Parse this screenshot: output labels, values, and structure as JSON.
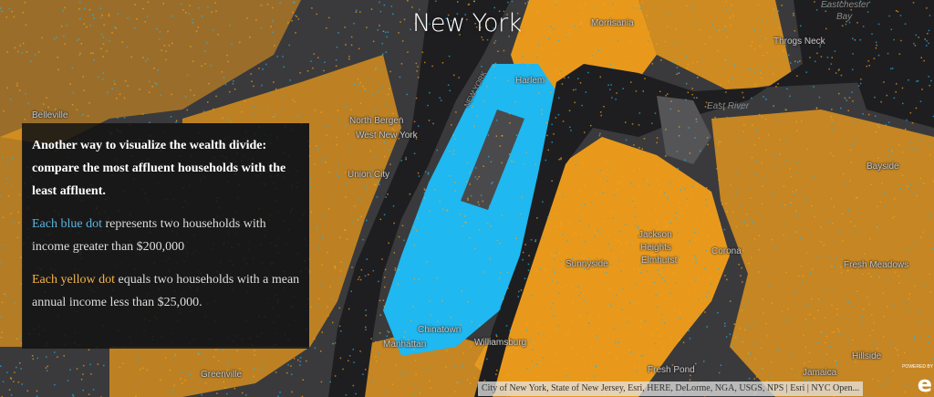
{
  "map": {
    "title": "New York",
    "colors": {
      "affluent_dot": "#1fb8f0",
      "low_income_dot": "#f9a31a",
      "land": "#3a3a3c",
      "water": "#1e1e20",
      "park": "#555557"
    },
    "labels": [
      {
        "text": "Belleville",
        "type": "place"
      },
      {
        "text": "North Bergen",
        "type": "place"
      },
      {
        "text": "West New York",
        "type": "place"
      },
      {
        "text": "Union City",
        "type": "place"
      },
      {
        "text": "Harlem",
        "type": "place"
      },
      {
        "text": "Morrisania",
        "type": "place"
      },
      {
        "text": "Eastchester",
        "type": "water"
      },
      {
        "text": "Bay",
        "type": "water"
      },
      {
        "text": "Throgs Neck",
        "type": "place"
      },
      {
        "text": "East River",
        "type": "water"
      },
      {
        "text": "Bayside",
        "type": "place"
      },
      {
        "text": "Jackson",
        "type": "place"
      },
      {
        "text": "Heights",
        "type": "place"
      },
      {
        "text": "Elmhurst",
        "type": "place"
      },
      {
        "text": "Corona",
        "type": "place"
      },
      {
        "text": "Sunnyside",
        "type": "place"
      },
      {
        "text": "Fresh Meadows",
        "type": "place"
      },
      {
        "text": "Chinatown",
        "type": "place"
      },
      {
        "text": "Manhattan",
        "type": "place"
      },
      {
        "text": "Williamsburg",
        "type": "place"
      },
      {
        "text": "Fresh Pond",
        "type": "place"
      },
      {
        "text": "Hillside",
        "type": "place"
      },
      {
        "text": "Jamaica",
        "type": "place"
      },
      {
        "text": "Greenville",
        "type": "place"
      },
      {
        "text": "NEW YORK",
        "type": "road"
      }
    ]
  },
  "info_panel": {
    "lead": "Another way to visualize the wealth divide: compare the most affluent households with the least affluent.",
    "blue_highlight": "Each blue dot",
    "blue_rest": " represents two households with income greater than $200,000",
    "yellow_highlight": "Each yellow dot",
    "yellow_rest": " equals two households with a mean annual income less than $25,000."
  },
  "attribution": "City of New York, State of New Jersey, Esri, HERE, DeLorme, NGA, USGS, NPS | Esri | NYC Open...",
  "logo": {
    "text": "e",
    "powered": "POWERED BY"
  }
}
